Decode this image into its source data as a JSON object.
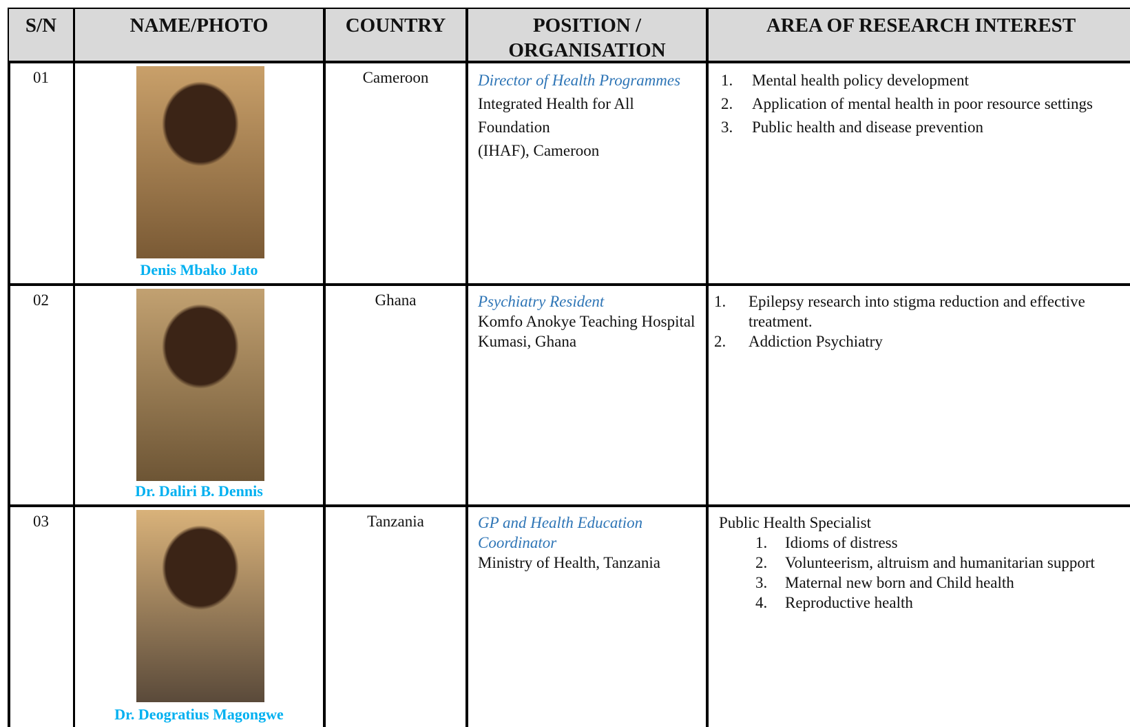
{
  "table": {
    "columns": [
      "S/N",
      "NAME/PHOTO",
      "COUNTRY",
      "POSITION / ORGANISATION",
      "AREA OF RESEARCH INTEREST"
    ],
    "rows": [
      {
        "sn": "01",
        "name": "Denis Mbako Jato",
        "country": "Cameroon",
        "position": "Director of Health Programmes",
        "organisation": [
          "Integrated Health for All Foundation",
          "(IHAF), Cameroon"
        ],
        "research": {
          "items": [
            {
              "number": "1.",
              "text": "Mental health policy development"
            },
            {
              "number": "2.",
              "text": "Application of mental health in poor resource settings"
            },
            {
              "number": "3.",
              "text": "Public health and disease prevention"
            }
          ]
        }
      },
      {
        "sn": "02",
        "name": "Dr. Daliri B. Dennis",
        "country": "Ghana",
        "position": "Psychiatry Resident",
        "organisation": [
          "Komfo Anokye Teaching Hospital",
          "Kumasi, Ghana"
        ],
        "research": {
          "items": [
            {
              "number": "1.",
              "text": "Epilepsy research into stigma reduction and effective treatment."
            },
            {
              "number": "2.",
              "text": "Addiction Psychiatry"
            }
          ]
        }
      },
      {
        "sn": "03",
        "name": "Dr. Deogratius Magongwe",
        "country": "Tanzania",
        "position": "GP and Health Education Coordinator",
        "organisation": [
          "Ministry of Health, Tanzania"
        ],
        "research": {
          "intro": "Public Health Specialist",
          "items": [
            {
              "number": "1.",
              "text": "Idioms of distress"
            },
            {
              "number": "2.",
              "text": "Volunteerism, altruism and humanitarian support"
            },
            {
              "number": "3.",
              "text": "Maternal new born and Child health"
            },
            {
              "number": "4.",
              "text": "Reproductive health"
            }
          ]
        }
      }
    ]
  }
}
